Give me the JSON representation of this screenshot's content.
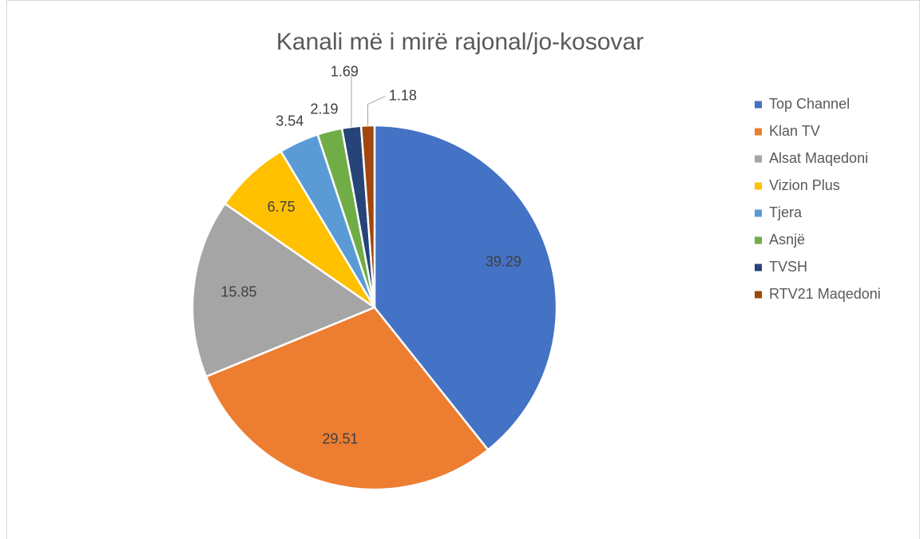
{
  "chart_data": {
    "type": "pie",
    "title": "Kanali më i mirë rajonal/jo-kosovar",
    "categories": [
      "Top Channel",
      "Klan TV",
      "Alsat Maqedoni",
      "Vizion Plus",
      "Tjera",
      "Asnjë",
      "TVSH",
      "RTV21 Maqedoni"
    ],
    "values": [
      39.29,
      29.51,
      15.85,
      6.75,
      3.54,
      2.19,
      1.69,
      1.18
    ],
    "colors": [
      "#4472c4",
      "#ed7d31",
      "#a5a5a5",
      "#ffc000",
      "#5b9bd5",
      "#70ad47",
      "#264478",
      "#9e480e"
    ],
    "legend": "right"
  }
}
